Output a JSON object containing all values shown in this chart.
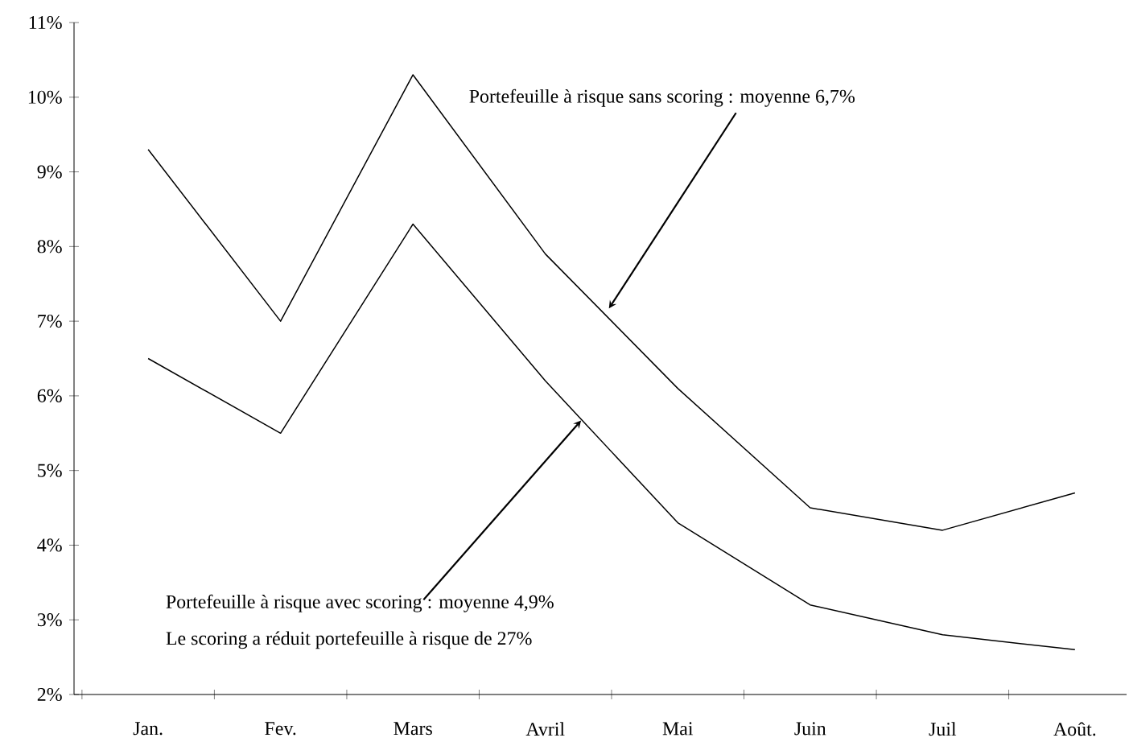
{
  "chart_data": {
    "type": "line",
    "categories": [
      "Jan.",
      "Fev.",
      "Mars",
      "Avril",
      "Mai",
      "Juin",
      "Juil",
      "Août."
    ],
    "series": [
      {
        "color": "#000000",
        "values": [
          9.3,
          7.0,
          10.3,
          7.9,
          6.1,
          4.5,
          4.2,
          4.7
        ]
      },
      {
        "color": "#000000",
        "values": [
          6.5,
          5.5,
          8.3,
          6.2,
          4.3,
          3.2,
          2.8,
          2.6
        ]
      }
    ],
    "ylim": [
      2,
      11
    ],
    "yticks": [
      {
        "value": 2,
        "label": "2%"
      },
      {
        "value": 3,
        "label": "3%"
      },
      {
        "value": 4,
        "label": "4%"
      },
      {
        "value": 5,
        "label": "5%"
      },
      {
        "value": 6,
        "label": "6%"
      },
      {
        "value": 7,
        "label": "7%"
      },
      {
        "value": 8,
        "label": "8%"
      },
      {
        "value": 9,
        "label": "9%"
      },
      {
        "value": 10,
        "label": "10%"
      },
      {
        "value": 11,
        "label": "11%"
      }
    ],
    "annotations": [
      "Portefeuille à risque sans scoring : moyenne 6,7%",
      "Portefeuille à risque avec scoring : moyenne 4,9%",
      "Le scoring a réduit portefeuille à risque de 27%"
    ],
    "grid": false,
    "legend": false,
    "marker": "none",
    "line_style": "solid"
  }
}
